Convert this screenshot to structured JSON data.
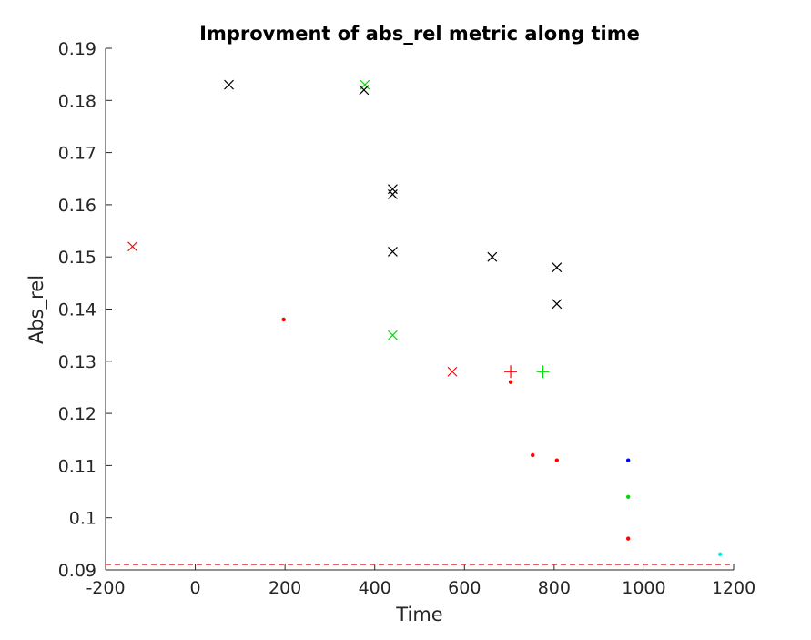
{
  "chart_data": {
    "type": "scatter",
    "title": "Improvment of abs_rel metric along time",
    "xlabel": "Time",
    "ylabel": "Abs_rel",
    "xlim": [
      -200,
      1200
    ],
    "ylim": [
      0.09,
      0.19
    ],
    "xticks": [
      -200,
      0,
      200,
      400,
      600,
      800,
      1000,
      1200
    ],
    "yticks": [
      0.09,
      0.1,
      0.11,
      0.12,
      0.13,
      0.14,
      0.15,
      0.16,
      0.17,
      0.18,
      0.19
    ],
    "grid": false,
    "reference_line": {
      "y": 0.091,
      "color": "#dd3333",
      "style": "dashed"
    },
    "points": [
      {
        "x": -140,
        "y": 0.152,
        "marker": "x",
        "color": "#ff0000"
      },
      {
        "x": 75,
        "y": 0.183,
        "marker": "x",
        "color": "#000000"
      },
      {
        "x": 197,
        "y": 0.138,
        "marker": "dot",
        "color": "#ff0000"
      },
      {
        "x": 378,
        "y": 0.183,
        "marker": "x",
        "color": "#00dd00"
      },
      {
        "x": 376,
        "y": 0.182,
        "marker": "x",
        "color": "#000000"
      },
      {
        "x": 440,
        "y": 0.163,
        "marker": "x",
        "color": "#000000"
      },
      {
        "x": 440,
        "y": 0.162,
        "marker": "x",
        "color": "#000000"
      },
      {
        "x": 440,
        "y": 0.151,
        "marker": "x",
        "color": "#000000"
      },
      {
        "x": 440,
        "y": 0.135,
        "marker": "x",
        "color": "#00dd00"
      },
      {
        "x": 573,
        "y": 0.128,
        "marker": "x",
        "color": "#ff0000"
      },
      {
        "x": 662,
        "y": 0.15,
        "marker": "x",
        "color": "#000000"
      },
      {
        "x": 703,
        "y": 0.128,
        "marker": "plus",
        "color": "#ff0000"
      },
      {
        "x": 703,
        "y": 0.126,
        "marker": "dot",
        "color": "#ff0000"
      },
      {
        "x": 752,
        "y": 0.112,
        "marker": "dot",
        "color": "#ff0000"
      },
      {
        "x": 775,
        "y": 0.128,
        "marker": "plus",
        "color": "#00dd00"
      },
      {
        "x": 806,
        "y": 0.148,
        "marker": "x",
        "color": "#000000"
      },
      {
        "x": 806,
        "y": 0.141,
        "marker": "x",
        "color": "#000000"
      },
      {
        "x": 806,
        "y": 0.111,
        "marker": "dot",
        "color": "#ff0000"
      },
      {
        "x": 965,
        "y": 0.111,
        "marker": "dot",
        "color": "#0000ff"
      },
      {
        "x": 965,
        "y": 0.104,
        "marker": "dot",
        "color": "#00dd00"
      },
      {
        "x": 965,
        "y": 0.096,
        "marker": "dot",
        "color": "#ff0000"
      },
      {
        "x": 1170,
        "y": 0.093,
        "marker": "dot",
        "color": "#00eeee"
      }
    ]
  }
}
